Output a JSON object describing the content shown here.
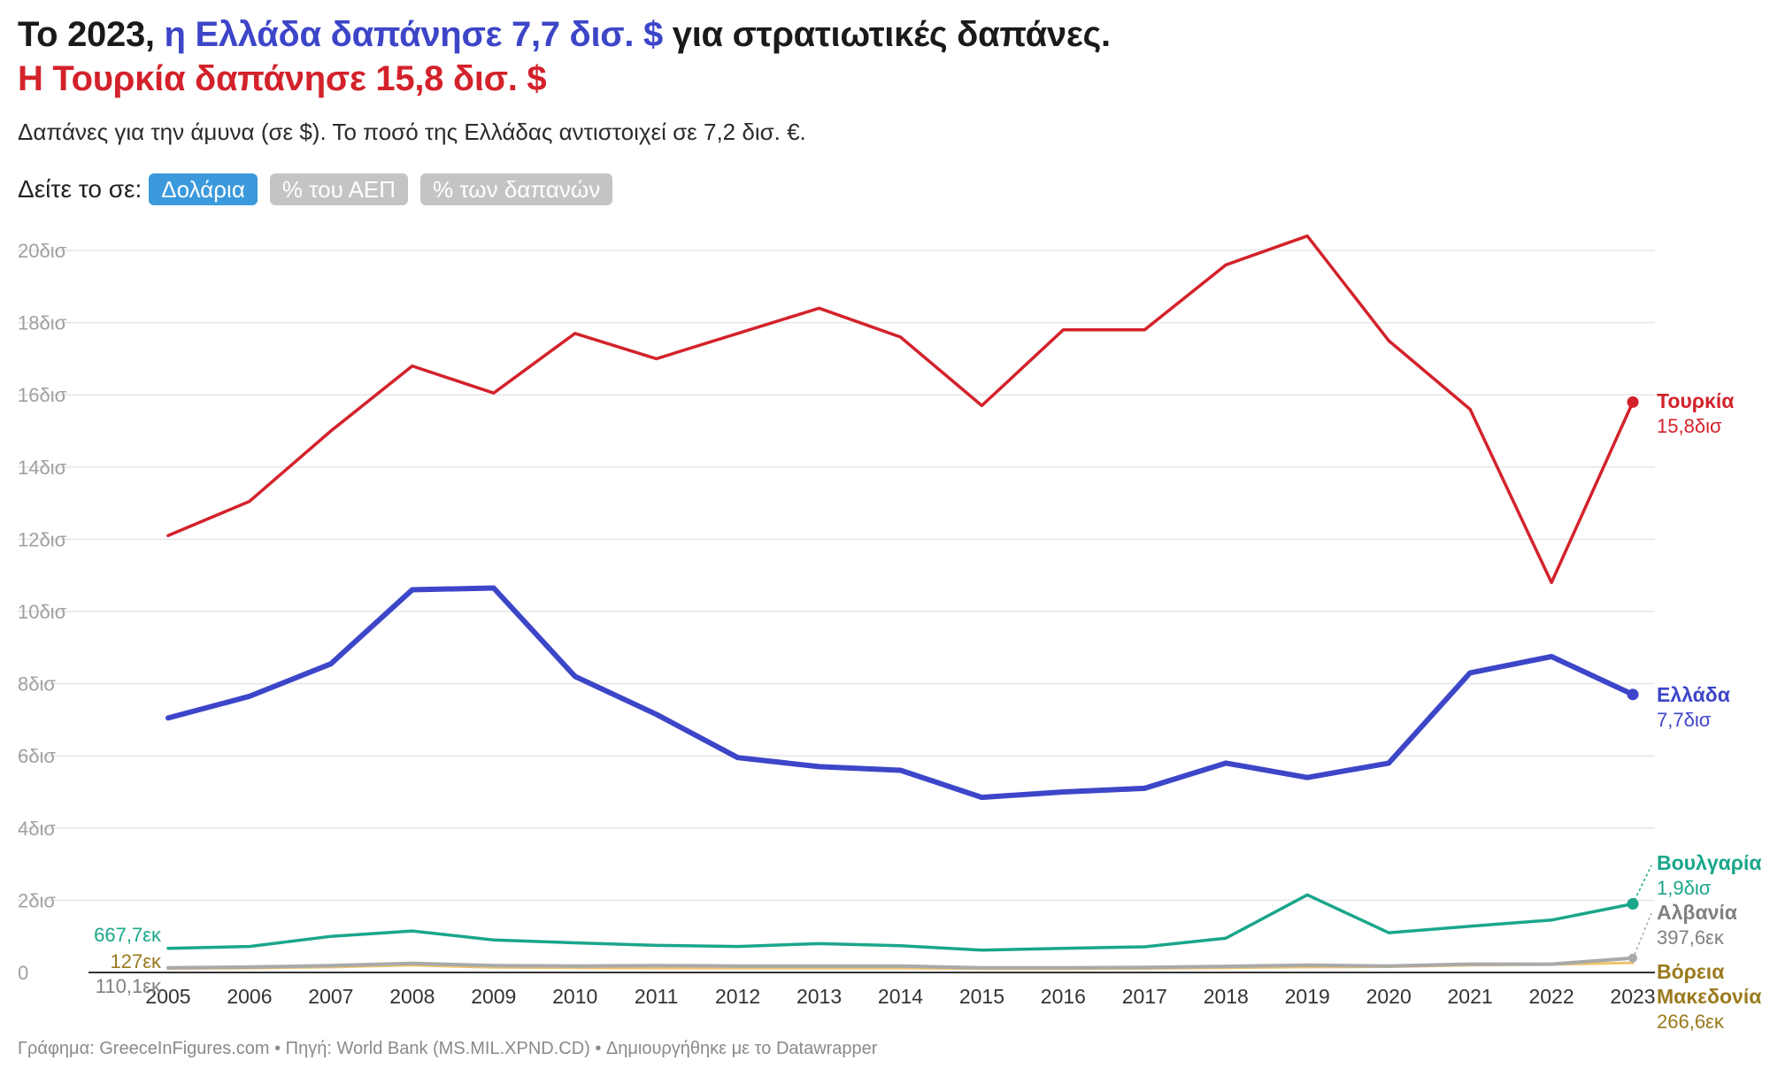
{
  "title": {
    "part1": "Το 2023, ",
    "part2": "η Ελλάδα δαπάνησε 7,7 δισ. $",
    "part3": " για στρατιωτικές δαπάνες.",
    "line2": "Η Τουρκία δαπάνησε 15,8 δισ. $"
  },
  "subtitle": "Δαπάνες για την άμυνα (σε $). Το ποσό της Ελλάδας αντιστοιχεί σε 7,2 δισ. €.",
  "view_selector": {
    "label": "Δείτε το σε:",
    "options": [
      "Δολάρια",
      "% του ΑΕΠ",
      "% των δαπανών"
    ],
    "selected": "Δολάρια"
  },
  "colors": {
    "turkey": "#d3222b",
    "greece": "#3d45c8",
    "bulgaria": "#1aa68a",
    "albania": "#a9a9a9",
    "north_macedonia": "#f0c36b",
    "north_macedonia_label": "#9a7a1c",
    "albania_label": "#808080",
    "grid": "#e6e6e6",
    "tick": "#a0a0a0"
  },
  "chart_data": {
    "type": "line",
    "x": [
      2005,
      2006,
      2007,
      2008,
      2009,
      2010,
      2011,
      2012,
      2013,
      2014,
      2015,
      2016,
      2017,
      2018,
      2019,
      2020,
      2021,
      2022,
      2023
    ],
    "ylim": [
      0,
      20
    ],
    "y_unit": "δισ. $",
    "y_ticks": [
      0,
      2,
      4,
      6,
      8,
      10,
      12,
      14,
      16,
      18,
      20
    ],
    "y_tick_labels": [
      "0",
      "2δισ",
      "4δισ",
      "6δισ",
      "8δισ",
      "10δισ",
      "12δισ",
      "14δισ",
      "16δισ",
      "18δισ",
      "20δισ"
    ],
    "grid": true,
    "series": [
      {
        "key": "turkey",
        "name": "Τουρκία",
        "end_label": "15,8δισ",
        "values": [
          12.1,
          13.05,
          15.0,
          16.8,
          16.05,
          17.7,
          17.0,
          17.7,
          18.4,
          17.6,
          15.7,
          17.8,
          17.8,
          19.6,
          20.4,
          17.5,
          15.6,
          10.8,
          15.8
        ]
      },
      {
        "key": "greece",
        "name": "Ελλάδα",
        "end_label": "7,7δισ",
        "values": [
          7.05,
          7.65,
          8.55,
          10.6,
          10.65,
          8.2,
          7.15,
          5.95,
          5.7,
          5.6,
          4.85,
          5.0,
          5.1,
          5.8,
          5.4,
          5.8,
          8.3,
          8.75,
          7.7
        ]
      },
      {
        "key": "bulgaria",
        "name": "Βουλγαρία",
        "start_label": "667,7εκ",
        "end_label": "1,9δισ",
        "values": [
          0.668,
          0.72,
          1.0,
          1.15,
          0.9,
          0.82,
          0.75,
          0.72,
          0.8,
          0.74,
          0.62,
          0.67,
          0.71,
          0.95,
          2.15,
          1.1,
          1.28,
          1.45,
          1.9
        ]
      },
      {
        "key": "albania",
        "name": "Αλβανία",
        "start_label": "127εκ",
        "end_label": "397,6εκ",
        "values": [
          0.127,
          0.15,
          0.19,
          0.25,
          0.19,
          0.18,
          0.19,
          0.18,
          0.18,
          0.18,
          0.13,
          0.13,
          0.14,
          0.17,
          0.2,
          0.18,
          0.23,
          0.23,
          0.398
        ]
      },
      {
        "key": "north_macedonia",
        "name": "Βόρεια Μακεδονία",
        "start_label": "110,1εκ",
        "end_label": "266,6εκ",
        "values": [
          0.11,
          0.12,
          0.15,
          0.2,
          0.14,
          0.13,
          0.12,
          0.12,
          0.12,
          0.12,
          0.1,
          0.1,
          0.11,
          0.13,
          0.15,
          0.16,
          0.2,
          0.22,
          0.267
        ]
      }
    ]
  },
  "footer": "Γράφημα: GreeceInFigures.com • Πηγή: World Bank (MS.MIL.XPND.CD) • Δημιουργήθηκε με το Datawrapper"
}
